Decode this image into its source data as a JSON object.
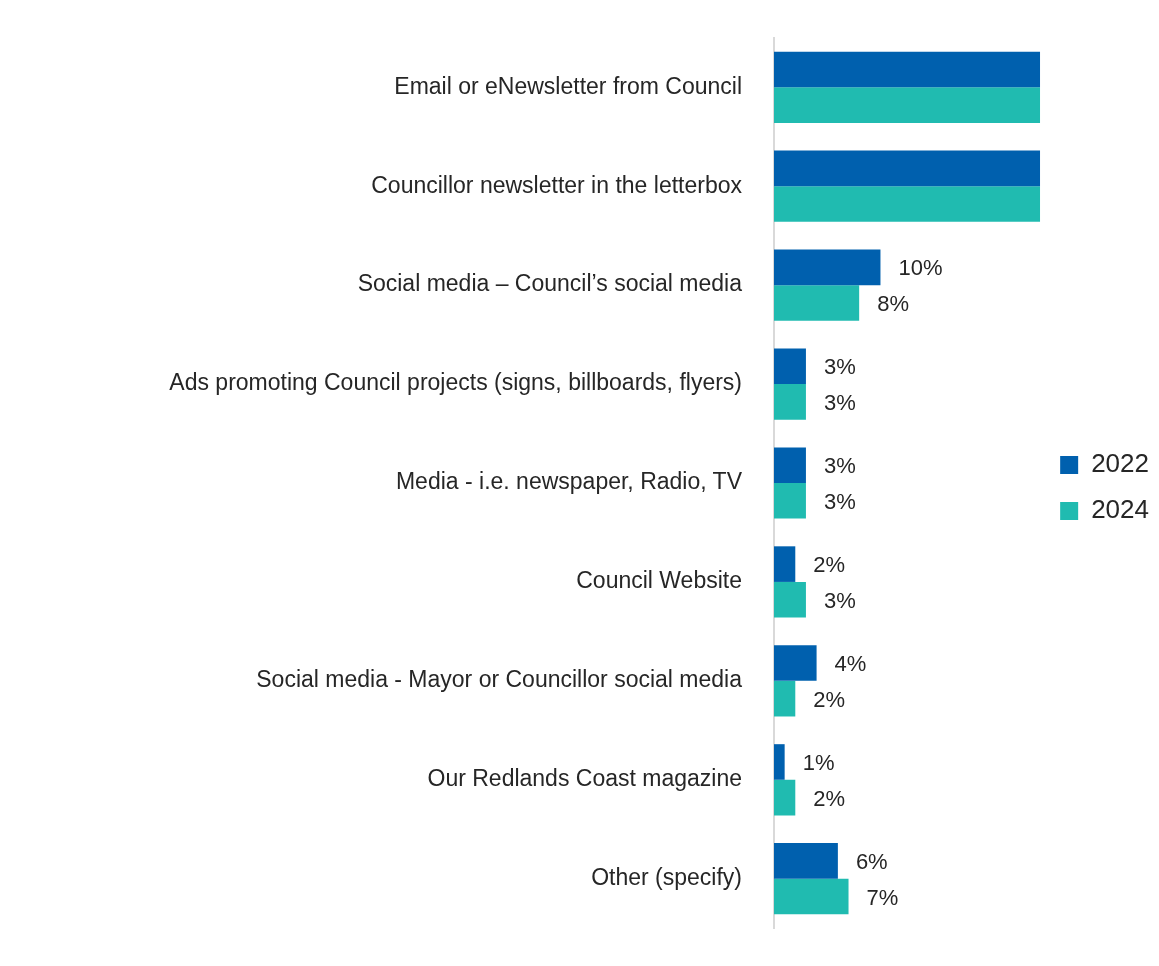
{
  "chart_data": {
    "type": "bar",
    "orientation": "horizontal",
    "categories": [
      "Email or eNewsletter from Council",
      "Councillor newsletter in the letterbox",
      "Social media – Council’s social media",
      "Ads promoting Council projects (signs, billboards, flyers)",
      "Media - i.e. newspaper, Radio, TV",
      "Council Website",
      "Social media - Mayor or Councillor social media",
      "Our Redlands Coast magazine",
      "Other (specify)"
    ],
    "series": [
      {
        "name": "2022",
        "color": "#0060ae",
        "values": [
          25,
          25,
          10,
          3,
          3,
          2,
          4,
          1,
          6
        ],
        "value_labels": [
          null,
          null,
          "10%",
          "3%",
          "3%",
          "2%",
          "4%",
          "1%",
          "6%"
        ]
      },
      {
        "name": "2024",
        "color": "#20bbb0",
        "values": [
          25,
          25,
          8,
          3,
          3,
          3,
          2,
          2,
          7
        ],
        "value_labels": [
          null,
          null,
          "8%",
          "3%",
          "3%",
          "3%",
          "2%",
          "2%",
          "7%"
        ]
      }
    ],
    "xlim": [
      0,
      25
    ],
    "tick_labels": "y",
    "legend": "right"
  }
}
